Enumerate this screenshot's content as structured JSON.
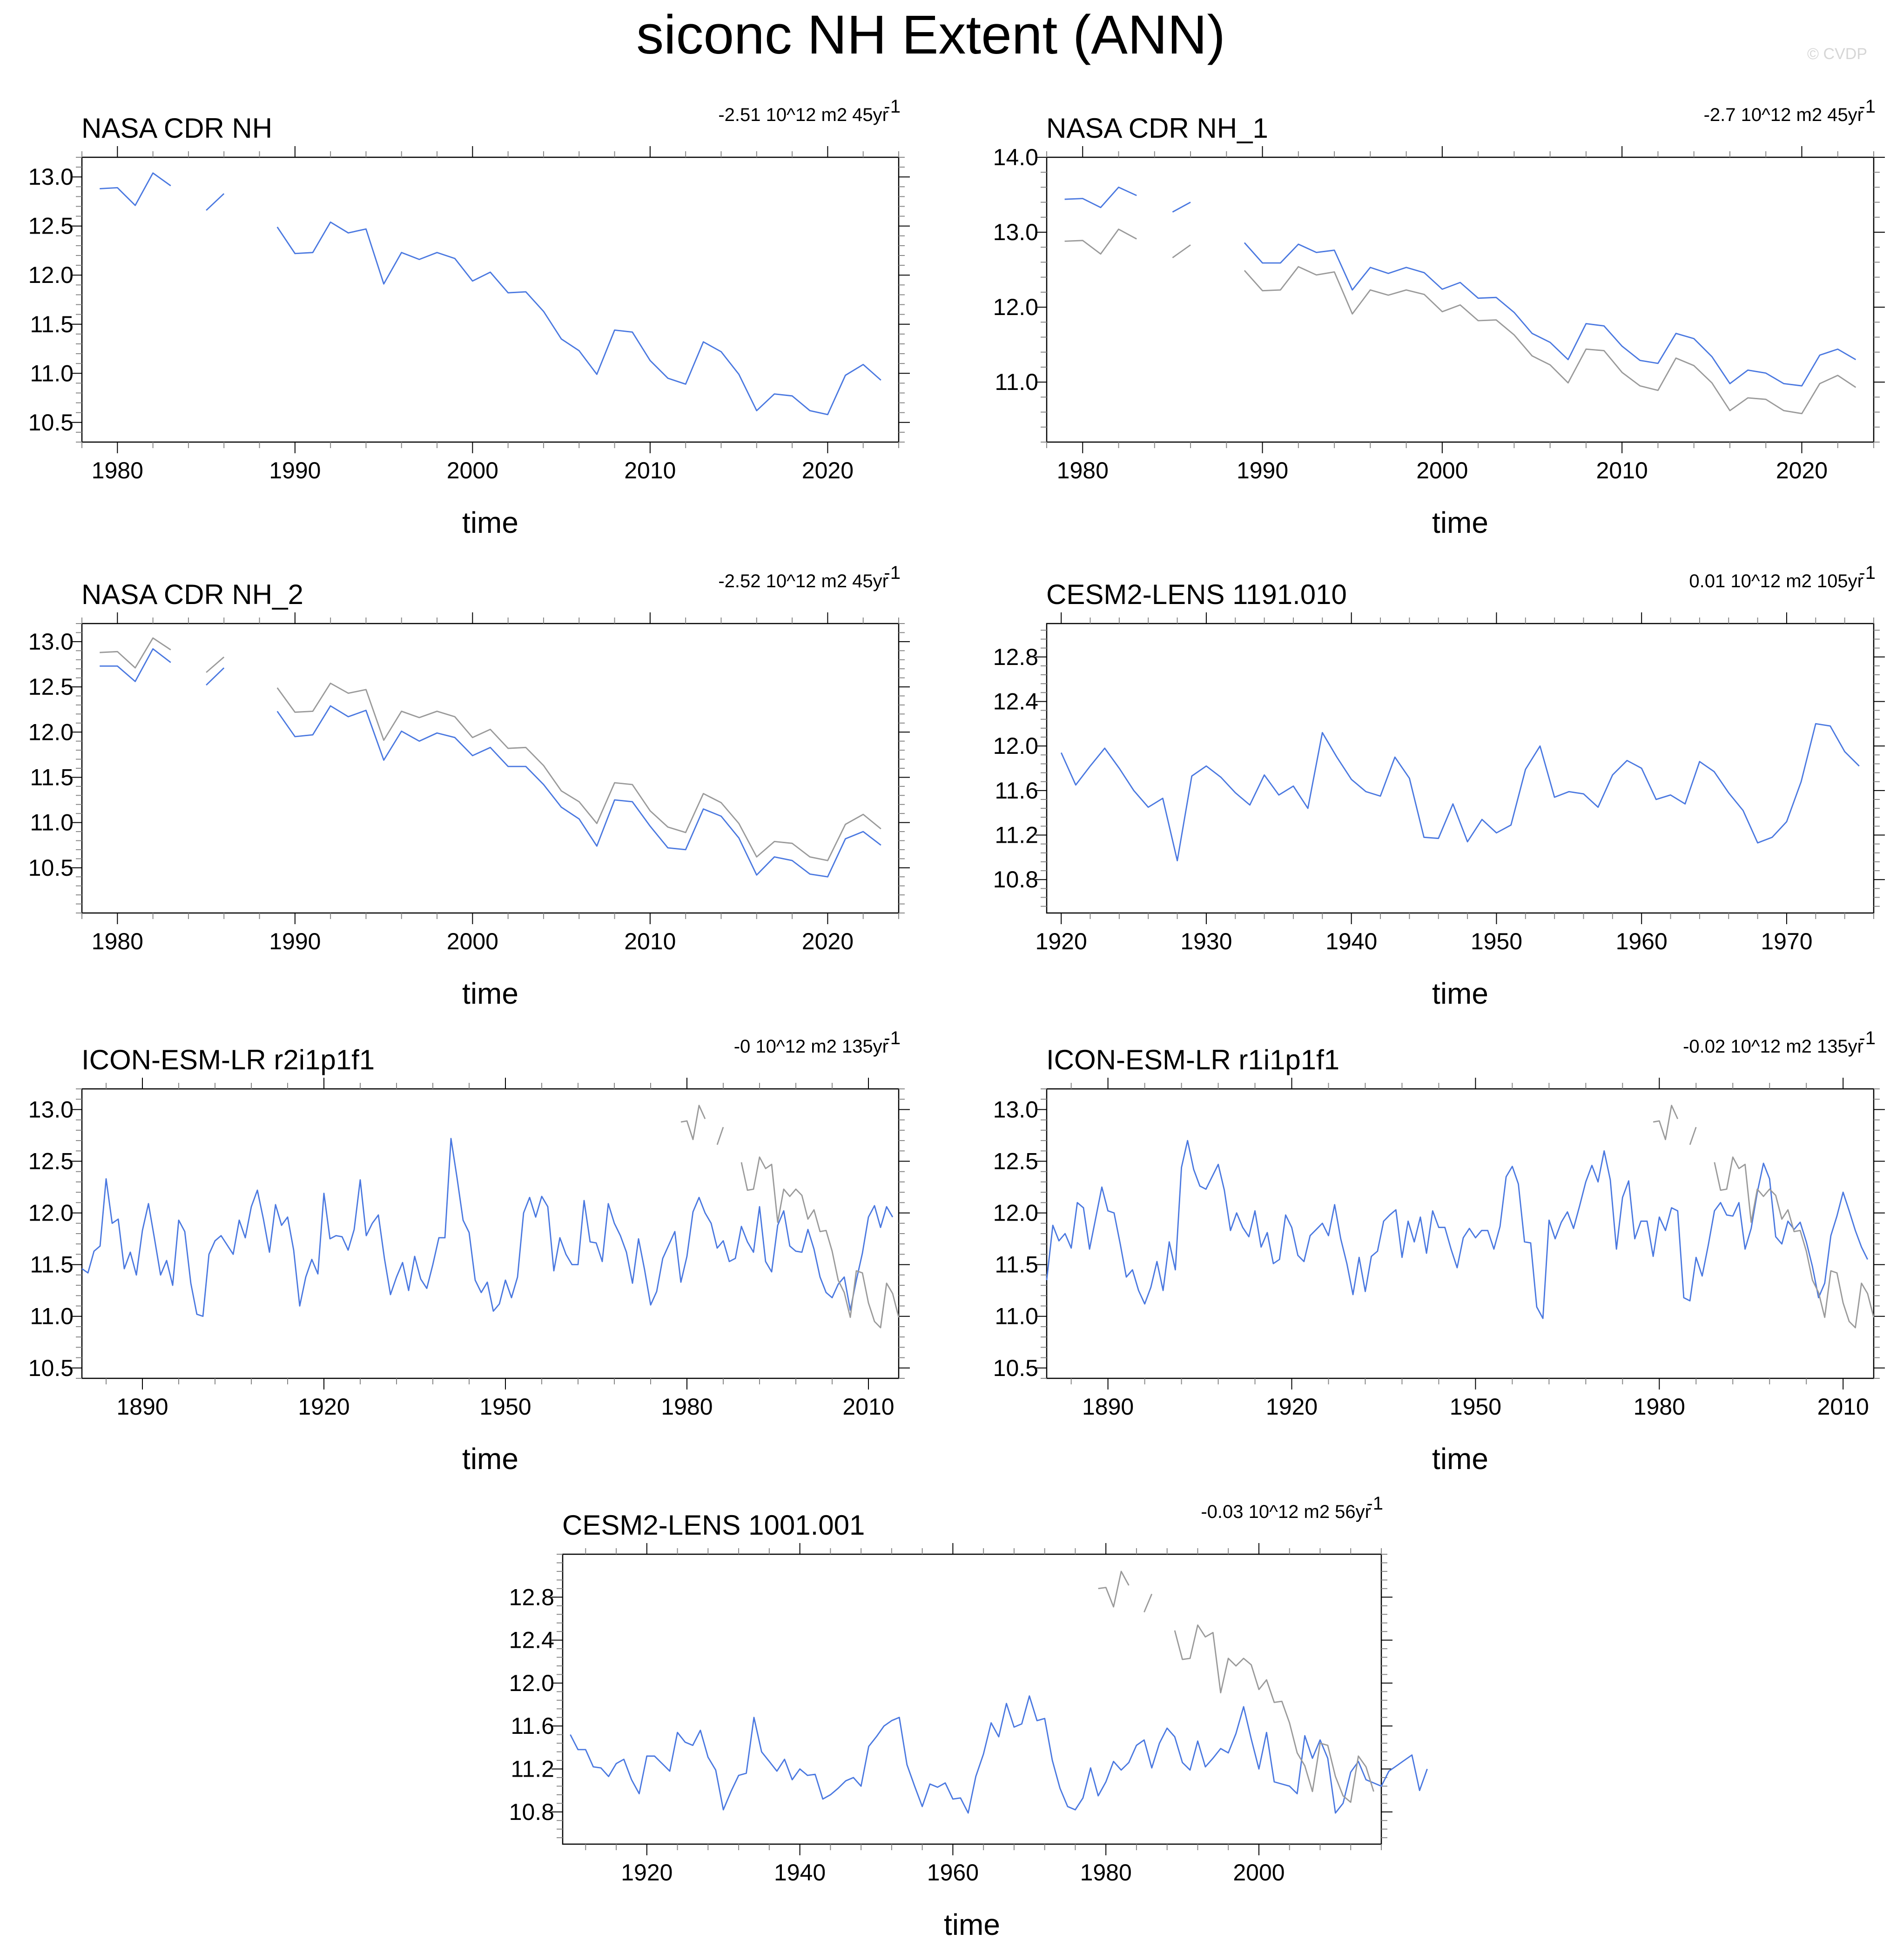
{
  "title": "siconc NH Extent (ANN)",
  "watermark": "© CVDP",
  "colors": {
    "model": "#4a78e0",
    "obs": "#9a9a9a",
    "axis": "#000000",
    "minor": "#888888"
  },
  "chart_data": [
    {
      "type": "line",
      "title": "NASA CDR NH",
      "trend": {
        "value": "-2.51 10^12 m2 45yr",
        "exp": "-1"
      },
      "xlabel": "time",
      "xlim": [
        1978,
        2024
      ],
      "ylim": [
        10.3,
        13.2
      ],
      "xticks": [
        1980,
        1990,
        2000,
        2010,
        2020
      ],
      "yticks": [
        10.5,
        11.0,
        11.5,
        12.0,
        12.5,
        13.0
      ],
      "ydec": 1,
      "x0": 1979,
      "series": [
        {
          "color": "model",
          "values": [
            12.88,
            12.89,
            12.71,
            13.04,
            12.91,
            null,
            12.66,
            12.83,
            null,
            null,
            12.49,
            12.22,
            12.23,
            12.54,
            12.43,
            12.47,
            11.91,
            12.23,
            12.16,
            12.23,
            12.17,
            11.94,
            12.03,
            11.82,
            11.83,
            11.63,
            11.35,
            11.23,
            10.99,
            11.44,
            11.42,
            11.13,
            10.95,
            10.89,
            11.32,
            11.22,
            10.99,
            10.62,
            10.79,
            10.77,
            10.62,
            10.58,
            10.98,
            11.09,
            10.93
          ]
        }
      ]
    },
    {
      "type": "line",
      "title": "NASA CDR NH_1",
      "trend": {
        "value": "-2.7 10^12 m2 45yr",
        "exp": "-1"
      },
      "xlabel": "time",
      "xlim": [
        1978,
        2024
      ],
      "ylim": [
        10.2,
        14.0
      ],
      "xticks": [
        1980,
        1990,
        2000,
        2010,
        2020
      ],
      "yticks": [
        11.0,
        12.0,
        13.0,
        14.0
      ],
      "ydec": 1,
      "x0": 1979,
      "series": [
        {
          "color": "obs",
          "values": [
            12.88,
            12.89,
            12.71,
            13.04,
            12.91,
            null,
            12.66,
            12.83,
            null,
            null,
            12.49,
            12.22,
            12.23,
            12.54,
            12.43,
            12.47,
            11.91,
            12.23,
            12.16,
            12.23,
            12.17,
            11.94,
            12.03,
            11.82,
            11.83,
            11.63,
            11.35,
            11.23,
            10.99,
            11.44,
            11.42,
            11.13,
            10.95,
            10.89,
            11.32,
            11.22,
            10.99,
            10.62,
            10.79,
            10.77,
            10.62,
            10.58,
            10.98,
            11.09,
            10.93
          ]
        },
        {
          "color": "model",
          "values": [
            13.44,
            13.45,
            13.33,
            13.6,
            13.49,
            null,
            13.27,
            13.4,
            null,
            null,
            12.86,
            12.59,
            12.59,
            12.84,
            12.73,
            12.76,
            12.23,
            12.53,
            12.45,
            12.53,
            12.46,
            12.24,
            12.33,
            12.12,
            12.13,
            11.93,
            11.65,
            11.53,
            11.3,
            11.78,
            11.75,
            11.48,
            11.29,
            11.25,
            11.65,
            11.58,
            11.34,
            10.98,
            11.16,
            11.12,
            10.98,
            10.95,
            11.36,
            11.44,
            11.3
          ]
        }
      ]
    },
    {
      "type": "line",
      "title": "NASA CDR NH_2",
      "trend": {
        "value": "-2.52 10^12 m2 45yr",
        "exp": "-1"
      },
      "xlabel": "time",
      "xlim": [
        1978,
        2024
      ],
      "ylim": [
        10.0,
        13.2
      ],
      "xticks": [
        1980,
        1990,
        2000,
        2010,
        2020
      ],
      "yticks": [
        10.5,
        11.0,
        11.5,
        12.0,
        12.5,
        13.0
      ],
      "ydec": 1,
      "x0": 1979,
      "series": [
        {
          "color": "obs",
          "values": [
            12.88,
            12.89,
            12.71,
            13.04,
            12.91,
            null,
            12.66,
            12.83,
            null,
            null,
            12.49,
            12.22,
            12.23,
            12.54,
            12.43,
            12.47,
            11.91,
            12.23,
            12.16,
            12.23,
            12.17,
            11.94,
            12.03,
            11.82,
            11.83,
            11.63,
            11.35,
            11.23,
            10.99,
            11.44,
            11.42,
            11.13,
            10.95,
            10.89,
            11.32,
            11.22,
            10.99,
            10.62,
            10.79,
            10.77,
            10.62,
            10.58,
            10.98,
            11.09,
            10.93
          ]
        },
        {
          "color": "model",
          "values": [
            12.73,
            12.73,
            12.56,
            12.92,
            12.77,
            null,
            12.52,
            12.71,
            null,
            null,
            12.23,
            11.95,
            11.97,
            12.29,
            12.17,
            12.24,
            11.69,
            12.01,
            11.9,
            11.99,
            11.94,
            11.74,
            11.83,
            11.62,
            11.62,
            11.42,
            11.17,
            11.04,
            10.74,
            11.25,
            11.23,
            10.96,
            10.72,
            10.7,
            11.15,
            11.07,
            10.83,
            10.42,
            10.62,
            10.58,
            10.43,
            10.4,
            10.82,
            10.9,
            10.75
          ]
        }
      ]
    },
    {
      "type": "line",
      "title": "CESM2-LENS 1191.010",
      "trend": {
        "value": "0.01 10^12 m2 105yr",
        "exp": "-1"
      },
      "xlabel": "time",
      "xlim": [
        1919,
        1976
      ],
      "ylim": [
        10.5,
        13.1
      ],
      "xticks": [
        1920,
        1930,
        1940,
        1950,
        1960,
        1970
      ],
      "yticks": [
        10.8,
        11.2,
        11.6,
        12.0,
        12.4,
        12.8
      ],
      "ydec": 1,
      "x0": 1920,
      "series": [
        {
          "color": "model",
          "values": [
            11.94,
            11.65,
            11.82,
            11.98,
            11.8,
            11.6,
            11.45,
            11.53,
            10.97,
            11.73,
            11.82,
            11.72,
            11.58,
            11.47,
            11.74,
            11.56,
            11.64,
            11.44,
            12.12,
            11.9,
            11.7,
            11.59,
            11.55,
            11.9,
            11.71,
            11.18,
            11.17,
            11.48,
            11.14,
            11.34,
            11.22,
            11.29,
            11.79,
            12.0,
            11.54,
            11.59,
            11.57,
            11.45,
            11.74,
            11.87,
            11.8,
            11.52,
            11.56,
            11.48,
            11.86,
            11.77,
            11.58,
            11.42,
            11.13,
            11.18,
            11.32,
            11.68,
            12.2,
            12.18,
            11.95,
            11.82
          ]
        }
      ]
    },
    {
      "type": "line",
      "title": "ICON-ESM-LR r2i1p1f1",
      "trend": {
        "value": "-0 10^12 m2 135yr",
        "exp": "-1"
      },
      "xlabel": "time",
      "xlim": [
        1880,
        2015
      ],
      "ylim": [
        10.4,
        13.2
      ],
      "xticks": [
        1890,
        1920,
        1950,
        1980,
        2010
      ],
      "yticks": [
        10.5,
        11.0,
        11.5,
        12.0,
        12.5,
        13.0
      ],
      "ydec": 1,
      "x0": 1880,
      "series": [
        {
          "color": "model",
          "values": [
            11.46,
            11.42,
            11.63,
            11.68,
            12.33,
            11.9,
            11.94,
            11.46,
            11.62,
            11.4,
            11.83,
            12.09,
            11.75,
            11.4,
            11.54,
            11.3,
            11.93,
            11.82,
            11.32,
            11.02,
            11.0,
            11.6,
            11.73,
            11.78,
            11.69,
            11.6,
            11.93,
            11.76,
            12.06,
            12.22,
            11.94,
            11.62,
            12.08,
            11.88,
            11.96,
            11.64,
            11.1,
            11.38,
            11.55,
            11.41,
            12.19,
            11.75,
            11.78,
            11.77,
            11.64,
            11.84,
            12.32,
            11.78,
            11.9,
            11.98,
            11.56,
            11.21,
            11.38,
            11.52,
            11.25,
            11.58,
            11.36,
            11.27,
            11.5,
            11.76,
            11.76,
            12.72,
            12.34,
            11.93,
            11.81,
            11.35,
            11.23,
            11.33,
            11.05,
            11.12,
            11.35,
            11.18,
            11.38,
            12.0,
            12.15,
            11.96,
            12.16,
            12.06,
            11.44,
            11.76,
            11.6,
            11.5,
            11.5,
            12.12,
            11.72,
            11.71,
            11.53,
            12.09,
            11.9,
            11.78,
            11.62,
            11.32,
            11.75,
            11.45,
            11.11,
            11.24,
            11.56,
            11.69,
            11.82,
            11.33,
            11.58,
            12.01,
            12.15,
            12.0,
            11.9,
            11.66,
            11.73,
            11.53,
            11.56,
            11.87,
            11.72,
            11.62,
            12.06,
            11.53,
            11.43,
            11.88,
            12.02,
            11.68,
            11.63,
            11.62,
            11.84,
            11.65,
            11.38,
            11.23,
            11.18,
            11.31,
            11.38,
            11.06,
            11.35,
            11.61,
            11.96,
            12.07,
            11.86,
            12.06,
            11.96
          ]
        },
        {
          "color": "obs",
          "x0": 1979,
          "values": [
            12.88,
            12.89,
            12.71,
            13.04,
            12.91,
            null,
            12.66,
            12.83,
            null,
            null,
            12.49,
            12.22,
            12.23,
            12.54,
            12.43,
            12.47,
            11.91,
            12.23,
            12.16,
            12.23,
            12.17,
            11.94,
            12.03,
            11.82,
            11.83,
            11.63,
            11.35,
            11.23,
            10.99,
            11.44,
            11.42,
            11.13,
            10.95,
            10.89,
            11.32,
            11.22,
            10.99
          ]
        }
      ]
    },
    {
      "type": "line",
      "title": "ICON-ESM-LR r1i1p1f1",
      "trend": {
        "value": "-0.02 10^12 m2 135yr",
        "exp": "-1"
      },
      "xlabel": "time",
      "xlim": [
        1880,
        2015
      ],
      "ylim": [
        10.4,
        13.2
      ],
      "xticks": [
        1890,
        1920,
        1950,
        1980,
        2010
      ],
      "yticks": [
        10.5,
        11.0,
        11.5,
        12.0,
        12.5,
        13.0
      ],
      "ydec": 1,
      "x0": 1880,
      "series": [
        {
          "color": "model",
          "values": [
            11.35,
            11.88,
            11.73,
            11.8,
            11.66,
            12.1,
            12.05,
            11.65,
            11.95,
            12.25,
            12.02,
            12.0,
            11.7,
            11.38,
            11.45,
            11.25,
            11.12,
            11.28,
            11.53,
            11.25,
            11.72,
            11.45,
            12.44,
            12.7,
            12.42,
            12.26,
            12.23,
            12.35,
            12.47,
            12.22,
            11.83,
            12.0,
            11.86,
            11.77,
            12.02,
            11.67,
            11.81,
            11.51,
            11.55,
            11.98,
            11.86,
            11.59,
            11.53,
            11.78,
            11.84,
            11.9,
            11.78,
            12.08,
            11.75,
            11.51,
            11.21,
            11.57,
            11.24,
            11.58,
            11.63,
            11.92,
            11.98,
            12.03,
            11.57,
            11.92,
            11.72,
            11.96,
            11.61,
            12.02,
            11.86,
            11.86,
            11.65,
            11.47,
            11.76,
            11.85,
            11.76,
            11.83,
            11.83,
            11.65,
            11.87,
            12.35,
            12.45,
            12.28,
            11.72,
            11.71,
            11.09,
            10.98,
            11.93,
            11.75,
            11.91,
            12.01,
            11.85,
            12.07,
            12.3,
            12.46,
            12.3,
            12.6,
            12.32,
            11.65,
            12.15,
            12.31,
            11.75,
            11.92,
            11.92,
            11.58,
            11.96,
            11.83,
            12.05,
            12.02,
            11.18,
            11.15,
            11.57,
            11.39,
            11.69,
            12.02,
            12.1,
            11.98,
            11.97,
            12.1,
            11.65,
            11.85,
            12.2,
            12.48,
            12.33,
            11.77,
            11.7,
            11.92,
            11.84,
            11.91,
            11.72,
            11.48,
            11.18,
            11.32,
            11.78,
            11.97,
            12.2,
            12.02,
            11.83,
            11.67,
            11.55
          ]
        },
        {
          "color": "obs",
          "x0": 1979,
          "values": [
            12.88,
            12.89,
            12.71,
            13.04,
            12.91,
            null,
            12.66,
            12.83,
            null,
            null,
            12.49,
            12.22,
            12.23,
            12.54,
            12.43,
            12.47,
            11.91,
            12.23,
            12.16,
            12.23,
            12.17,
            11.94,
            12.03,
            11.82,
            11.83,
            11.63,
            11.35,
            11.23,
            10.99,
            11.44,
            11.42,
            11.13,
            10.95,
            10.89,
            11.32,
            11.22,
            10.99
          ]
        }
      ]
    },
    {
      "type": "line",
      "title": "CESM2-LENS 1001.001",
      "trend": {
        "value": "-0.03 10^12 m2 56yr",
        "exp": "-1"
      },
      "xlabel": "time",
      "xlim": [
        1909,
        2016
      ],
      "ylim": [
        10.5,
        13.2
      ],
      "xticks": [
        1920,
        1940,
        1960,
        1980,
        2000
      ],
      "yticks": [
        10.8,
        11.2,
        11.6,
        12.0,
        12.4,
        12.8
      ],
      "ydec": 1,
      "x0": 1910,
      "series": [
        {
          "color": "model",
          "values": [
            11.52,
            11.38,
            11.38,
            11.22,
            11.21,
            11.13,
            11.25,
            11.29,
            11.1,
            10.97,
            11.32,
            11.32,
            11.25,
            11.18,
            11.54,
            11.45,
            11.42,
            11.56,
            11.31,
            11.19,
            10.82,
            10.99,
            11.14,
            11.16,
            11.68,
            11.36,
            11.27,
            11.18,
            11.29,
            11.1,
            11.2,
            11.14,
            11.15,
            10.92,
            10.96,
            11.02,
            11.09,
            11.12,
            11.04,
            11.41,
            11.5,
            11.6,
            11.65,
            11.68,
            11.24,
            11.04,
            10.85,
            11.06,
            11.03,
            11.07,
            10.92,
            10.93,
            10.79,
            11.13,
            11.34,
            11.63,
            11.5,
            11.81,
            11.59,
            11.62,
            11.88,
            11.65,
            11.67,
            11.28,
            11.02,
            10.85,
            10.82,
            10.93,
            11.21,
            10.95,
            11.08,
            11.27,
            11.19,
            11.26,
            11.42,
            11.47,
            11.21,
            11.44,
            11.58,
            11.5,
            11.26,
            11.19,
            11.46,
            11.22,
            11.3,
            11.39,
            11.35,
            11.53,
            11.78,
            11.48,
            11.2,
            11.54,
            11.08,
            11.06,
            11.04,
            10.97,
            11.51,
            11.3,
            11.47,
            11.3,
            10.79,
            10.88,
            11.17,
            11.27,
            11.1,
            11.07,
            11.04,
            11.18,
            11.23,
            11.28,
            11.33,
            11.0,
            11.2
          ]
        },
        {
          "color": "obs",
          "x0": 1979,
          "values": [
            12.88,
            12.89,
            12.71,
            13.04,
            12.91,
            null,
            12.66,
            12.83,
            null,
            null,
            12.49,
            12.22,
            12.23,
            12.54,
            12.43,
            12.47,
            11.91,
            12.23,
            12.16,
            12.23,
            12.17,
            11.94,
            12.03,
            11.82,
            11.83,
            11.63,
            11.35,
            11.23,
            10.99,
            11.44,
            11.42,
            11.13,
            10.95,
            10.89,
            11.32,
            11.22,
            10.99
          ]
        }
      ]
    }
  ]
}
